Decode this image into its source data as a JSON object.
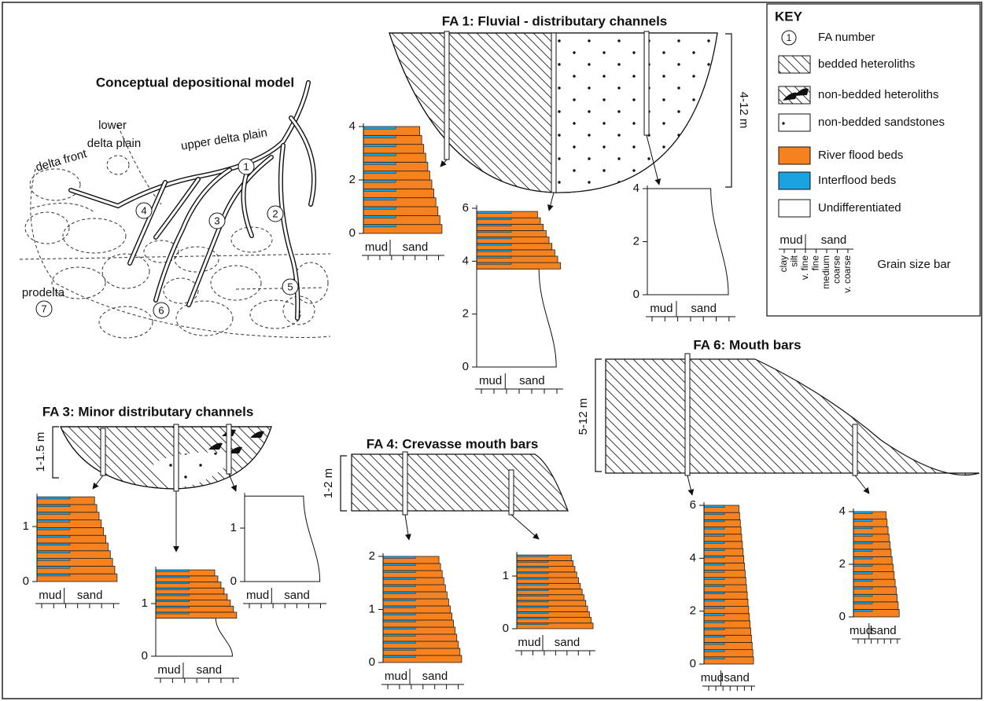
{
  "model": {
    "title": "Conceptual depositional model",
    "labels": [
      "lower",
      "delta plain",
      "upper delta plain",
      "delta front",
      "prodelta"
    ],
    "fa_numbers": [
      "1",
      "2",
      "3",
      "4",
      "5",
      "6",
      "7"
    ]
  },
  "panels": [
    {
      "title": "FA 1: Fluvial - distributary channels",
      "thickness": "4-12 m"
    },
    {
      "title": "FA 3:  Minor distributary channels",
      "thickness": "1-1.5 m"
    },
    {
      "title": "FA 4:  Crevasse mouth bars",
      "thickness": "1-2 m"
    },
    {
      "title": "FA 6:  Mouth bars",
      "thickness": "5-12 m"
    }
  ],
  "logs": [
    {
      "ticks": [
        0,
        2,
        4
      ],
      "mud": "mud",
      "sand": "sand"
    },
    {
      "ticks": [
        0,
        2,
        4,
        6
      ],
      "mud": "mud",
      "sand": "sand"
    },
    {
      "ticks": [
        0,
        2,
        4
      ],
      "mud": "mud",
      "sand": "sand"
    },
    {
      "ticks": [
        0,
        1
      ],
      "mud": "mud",
      "sand": "sand"
    },
    {
      "ticks": [
        0,
        1
      ],
      "mud": "mud",
      "sand": "sand"
    },
    {
      "ticks": [
        0,
        1
      ],
      "mud": "mud",
      "sand": "sand"
    },
    {
      "ticks": [
        0,
        1,
        2
      ],
      "mud": "mud",
      "sand": "sand"
    },
    {
      "ticks": [
        0,
        1
      ],
      "mud": "mud",
      "sand": "sand"
    },
    {
      "ticks": [
        0,
        2,
        4,
        6
      ],
      "mud": "mud",
      "sand": "sand"
    },
    {
      "ticks": [
        0,
        2,
        4
      ],
      "mud": "mud",
      "sand": "sand"
    }
  ],
  "key": {
    "title": "KEY",
    "fa_symbol": "1",
    "items": [
      "FA number",
      "bedded heteroliths",
      "non-bedded heteroliths",
      "non-bedded sandstones",
      "River flood beds",
      "Interflood beds",
      "Undifferentiated"
    ],
    "grain_bar": {
      "mud": "mud",
      "sand": "sand",
      "sizes": [
        "clay",
        "silt",
        "v. fine",
        "fine",
        "medium",
        "coarse",
        "v. coarse"
      ],
      "label": "Grain size bar"
    }
  }
}
